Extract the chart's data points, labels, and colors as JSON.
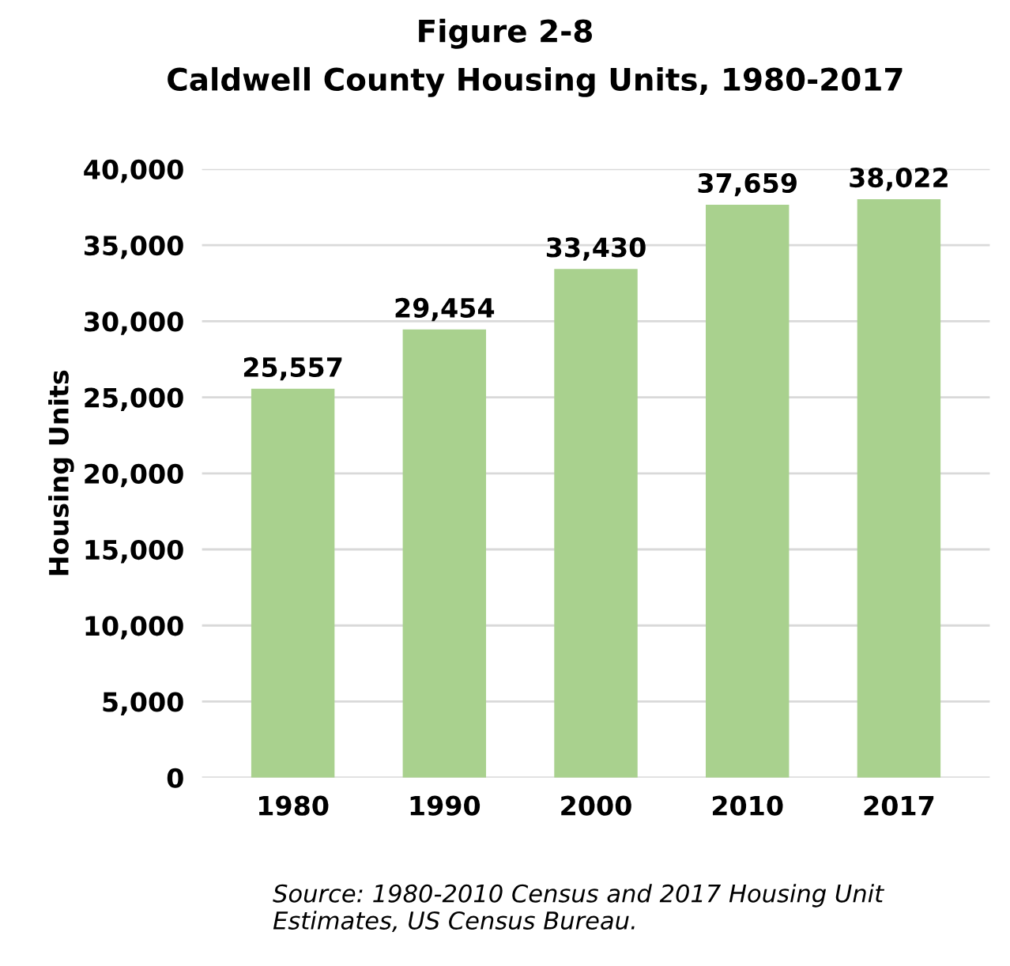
{
  "chart_data": {
    "type": "bar",
    "title": "Figure 2-8",
    "subtitle": "Caldwell County Housing Units, 1980-2017",
    "ylabel": "Housing Units",
    "categories": [
      "1980",
      "1990",
      "2000",
      "2010",
      "2017"
    ],
    "values": [
      25557,
      29454,
      33430,
      37659,
      38022
    ],
    "value_labels": [
      "25,557",
      "29,454",
      "33,430",
      "37,659",
      "38,022"
    ],
    "color": "#a9d18e",
    "ylim": [
      0,
      40000
    ],
    "yticks": [
      {
        "value": 0,
        "label": "0"
      },
      {
        "value": 5000,
        "label": "5,000"
      },
      {
        "value": 10000,
        "label": "10,000"
      },
      {
        "value": 15000,
        "label": "15,000"
      },
      {
        "value": 20000,
        "label": "20,000"
      },
      {
        "value": 25000,
        "label": "25,000"
      },
      {
        "value": 30000,
        "label": "30,000"
      },
      {
        "value": 35000,
        "label": "35,000"
      },
      {
        "value": 40000,
        "label": "40,000"
      }
    ],
    "grid": "y",
    "legend": false,
    "annotations": [
      "Source: 1980-2010 Census and 2017 Housing Unit Estimates, US Census Bureau."
    ]
  }
}
